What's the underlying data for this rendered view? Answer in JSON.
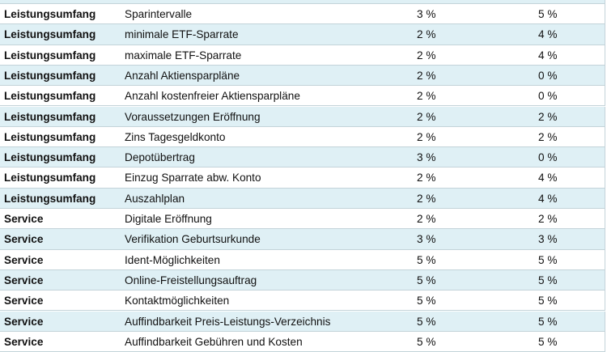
{
  "table": {
    "rows": [
      [
        "Leistungsumfang",
        "Sparintervalle",
        "3 %",
        "5 %"
      ],
      [
        "Leistungsumfang",
        "minimale ETF-Sparrate",
        "2 %",
        "4 %"
      ],
      [
        "Leistungsumfang",
        "maximale ETF-Sparrate",
        "2 %",
        "4 %"
      ],
      [
        "Leistungsumfang",
        "Anzahl Aktiensparpläne",
        "2 %",
        "0 %"
      ],
      [
        "Leistungsumfang",
        "Anzahl kostenfreier Aktiensparpläne",
        "2 %",
        "0 %"
      ],
      [
        "Leistungsumfang",
        "Voraussetzungen Eröffnung",
        "2 %",
        "2 %"
      ],
      [
        "Leistungsumfang",
        "Zins Tagesgeldkonto",
        "2 %",
        "2 %"
      ],
      [
        "Leistungsumfang",
        "Depotübertrag",
        "3 %",
        "0 %"
      ],
      [
        "Leistungsumfang",
        "Einzug Sparrate abw. Konto",
        "2 %",
        "4 %"
      ],
      [
        "Leistungsumfang",
        "Auszahlplan",
        "2 %",
        "4 %"
      ],
      [
        "Service",
        "Digitale Eröffnung",
        "2 %",
        "2 %"
      ],
      [
        "Service",
        "Verifikation Geburtsurkunde",
        "3 %",
        "3 %"
      ],
      [
        "Service",
        "Ident-Möglichkeiten",
        "5 %",
        "5 %"
      ],
      [
        "Service",
        "Online-Freistellungsauftrag",
        "5 %",
        "5 %"
      ],
      [
        "Service",
        "Kontaktmöglichkeiten",
        "5 %",
        "5 %"
      ],
      [
        "Service",
        "Auffindbarkeit Preis-Leistungs-Verzeichnis",
        "5 %",
        "5 %"
      ],
      [
        "Service",
        "Auffindbarkeit Gebühren und Kosten",
        "5 %",
        "5 %"
      ]
    ]
  }
}
